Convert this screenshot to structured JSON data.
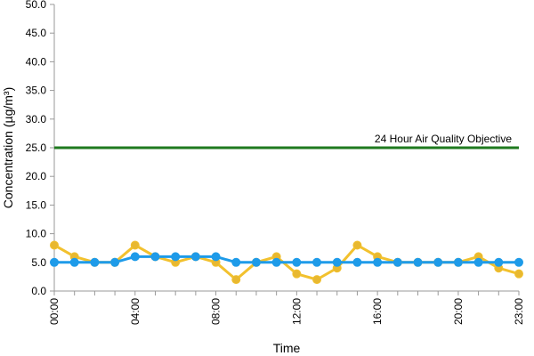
{
  "chart_data": {
    "type": "line",
    "xlabel": "Time",
    "ylabel": "Concentration (µg/m³)",
    "ylim": [
      0,
      50
    ],
    "yticks": [
      "0.0",
      "5.0",
      "10.0",
      "15.0",
      "20.0",
      "25.0",
      "30.0",
      "35.0",
      "40.0",
      "45.0",
      "50.0"
    ],
    "x": [
      "00:00",
      "01:00",
      "02:00",
      "03:00",
      "04:00",
      "05:00",
      "06:00",
      "07:00",
      "08:00",
      "09:00",
      "10:00",
      "11:00",
      "12:00",
      "13:00",
      "14:00",
      "15:00",
      "16:00",
      "17:00",
      "18:00",
      "19:00",
      "20:00",
      "21:00",
      "22:00",
      "23:00"
    ],
    "xtick_labels": [
      "00:00",
      "04:00",
      "08:00",
      "12:00",
      "16:00",
      "20:00",
      "23:00"
    ],
    "grid": false,
    "series": [
      {
        "color": "#f2c12e",
        "marker_color": "#e8b830",
        "values": [
          8,
          6,
          5,
          5,
          8,
          6,
          5,
          6,
          5,
          2,
          5,
          6,
          3,
          2,
          4,
          8,
          6,
          5,
          5,
          5,
          5,
          6,
          4,
          3
        ]
      },
      {
        "color": "#1e9be9",
        "marker_color": "#1e9be9",
        "values": [
          5,
          5,
          5,
          5,
          6,
          6,
          6,
          6,
          6,
          5,
          5,
          5,
          5,
          5,
          5,
          5,
          5,
          5,
          5,
          5,
          5,
          5,
          5,
          5
        ]
      }
    ],
    "reference_line": {
      "value": 25,
      "label": "24 Hour Air Quality Objective",
      "color": "#1f7a1f"
    }
  }
}
